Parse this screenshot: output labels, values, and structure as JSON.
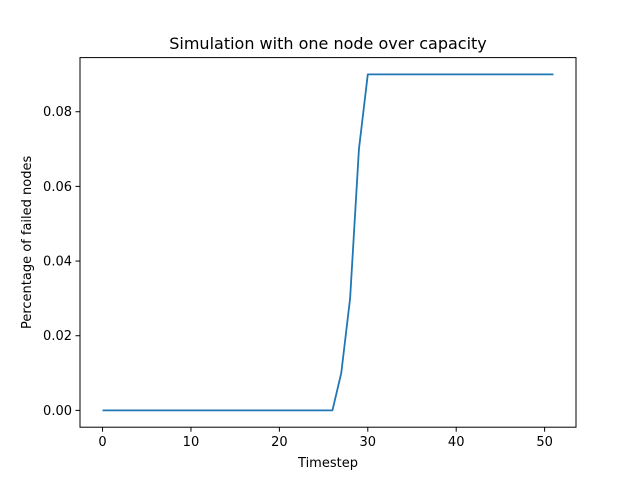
{
  "chart_data": {
    "type": "line",
    "title": "Simulation with one node over capacity",
    "xlabel": "Timestep",
    "ylabel": "Percentage of failed nodes",
    "xlim": [
      -2.55,
      53.55
    ],
    "ylim": [
      -0.0045,
      0.0945
    ],
    "xticks": [
      0,
      10,
      20,
      30,
      40,
      50
    ],
    "xtick_labels": [
      "0",
      "10",
      "20",
      "30",
      "40",
      "50"
    ],
    "yticks": [
      0.0,
      0.02,
      0.04,
      0.06,
      0.08
    ],
    "ytick_labels": [
      "0.00",
      "0.02",
      "0.04",
      "0.06",
      "0.08"
    ],
    "grid": false,
    "series": [
      {
        "color": "#1f77b4",
        "x": [
          0,
          1,
          2,
          3,
          4,
          5,
          6,
          7,
          8,
          9,
          10,
          11,
          12,
          13,
          14,
          15,
          16,
          17,
          18,
          19,
          20,
          21,
          22,
          23,
          24,
          25,
          26,
          27,
          28,
          29,
          30,
          31,
          32,
          33,
          34,
          35,
          36,
          37,
          38,
          39,
          40,
          41,
          42,
          43,
          44,
          45,
          46,
          47,
          48,
          49,
          50,
          51
        ],
        "y": [
          0,
          0,
          0,
          0,
          0,
          0,
          0,
          0,
          0,
          0,
          0,
          0,
          0,
          0,
          0,
          0,
          0,
          0,
          0,
          0,
          0,
          0,
          0,
          0,
          0,
          0,
          0,
          0.01,
          0.03,
          0.07,
          0.09,
          0.09,
          0.09,
          0.09,
          0.09,
          0.09,
          0.09,
          0.09,
          0.09,
          0.09,
          0.09,
          0.09,
          0.09,
          0.09,
          0.09,
          0.09,
          0.09,
          0.09,
          0.09,
          0.09,
          0.09,
          0.09
        ]
      }
    ]
  }
}
